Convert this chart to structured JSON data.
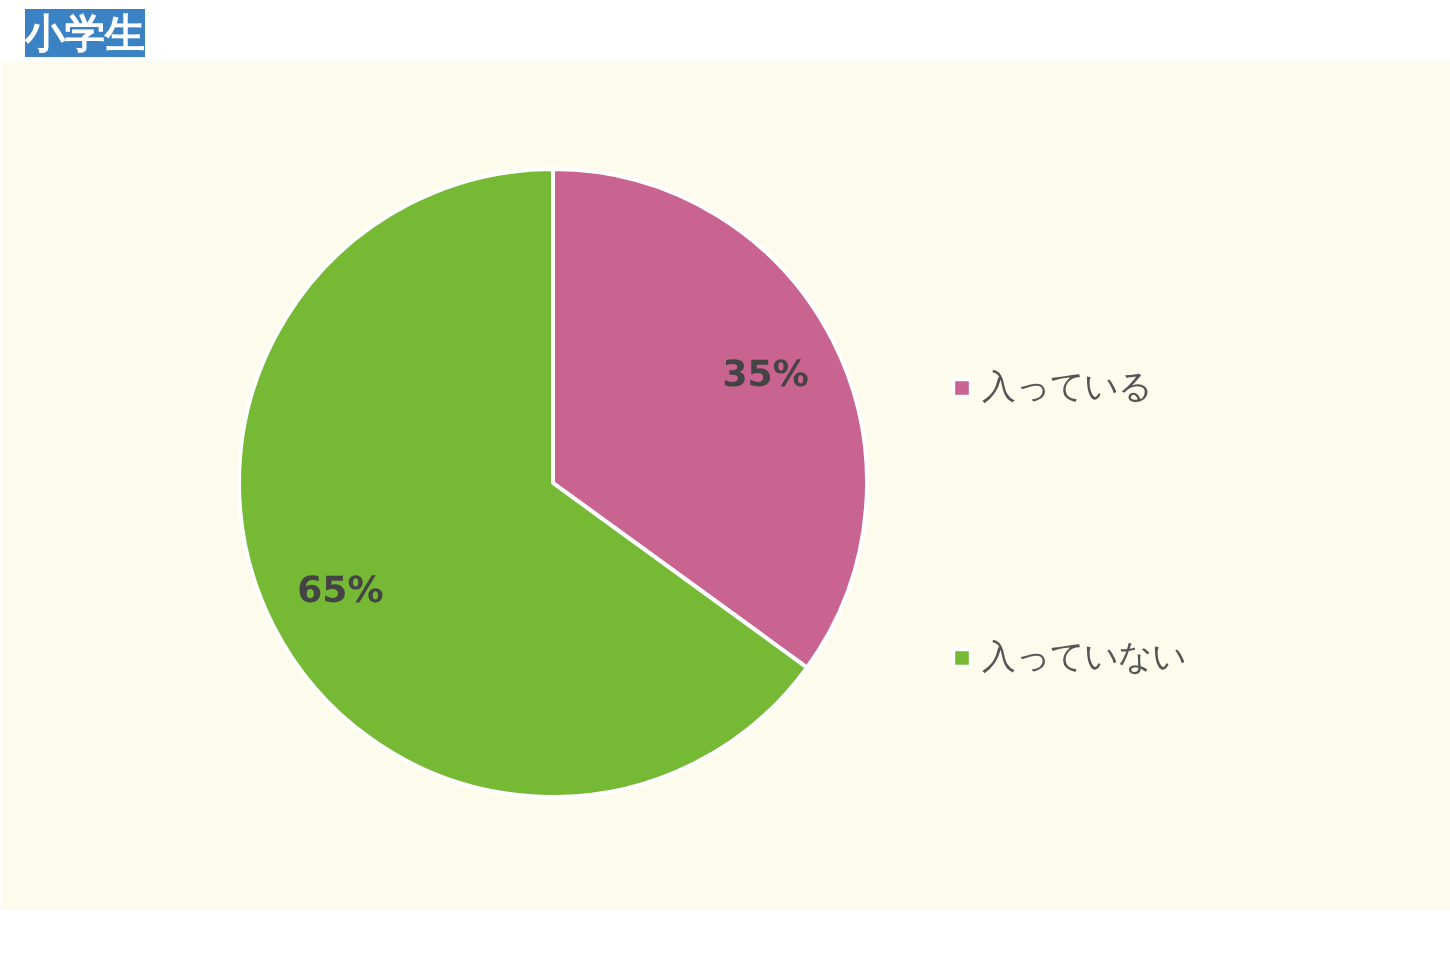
{
  "chart_data": {
    "type": "pie",
    "title": "小学生",
    "categories": [
      "入っている",
      "入っていない"
    ],
    "values": [
      35,
      65
    ],
    "colors": [
      "#c9638f",
      "#76b935"
    ],
    "value_labels": [
      "35%",
      "65%"
    ],
    "legend": "right"
  }
}
